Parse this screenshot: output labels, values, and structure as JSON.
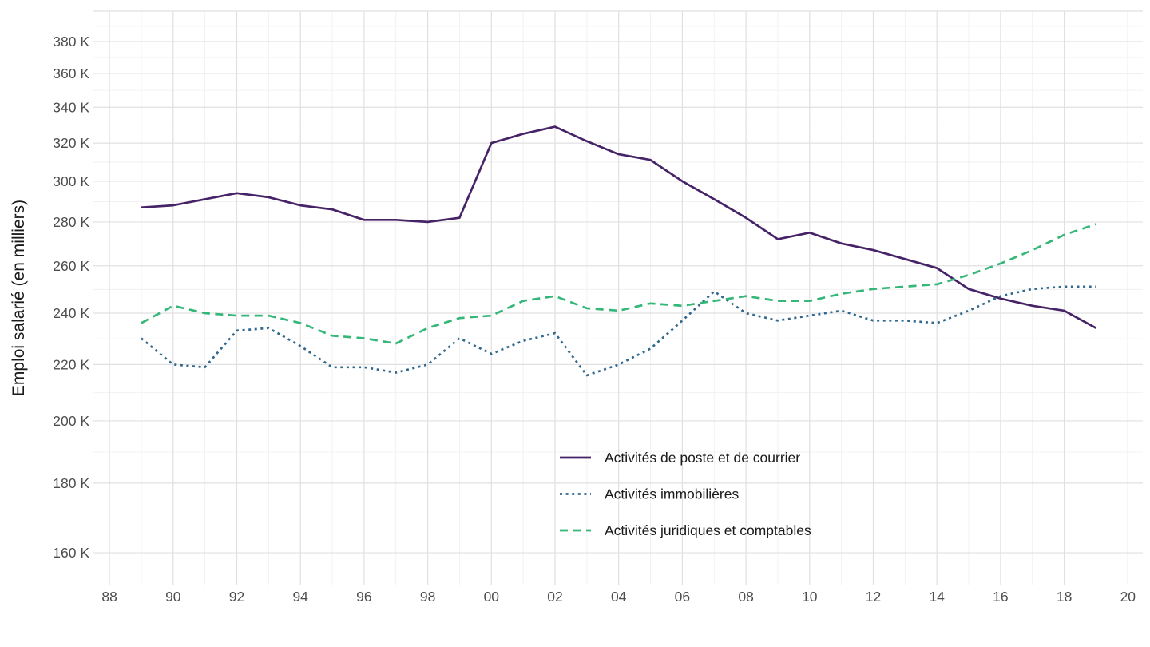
{
  "chart_data": {
    "type": "line",
    "title": "",
    "xlabel": "",
    "ylabel": "Emploi salarié (en milliers)",
    "y_scale": "log",
    "y_unit": "K (milliers)",
    "grid": true,
    "legend_position": "inside-bottom-center",
    "x": [
      1989,
      1990,
      1991,
      1992,
      1993,
      1994,
      1995,
      1996,
      1997,
      1998,
      1999,
      2000,
      2001,
      2002,
      2003,
      2004,
      2005,
      2006,
      2007,
      2008,
      2009,
      2010,
      2011,
      2012,
      2013,
      2014,
      2015,
      2016,
      2017,
      2018,
      2019
    ],
    "series": [
      {
        "name": "Activités de poste et de courrier",
        "color": "#462366",
        "line_style": "solid",
        "values": [
          287,
          288,
          291,
          294,
          292,
          288,
          286,
          281,
          281,
          280,
          282,
          320,
          325,
          329,
          321,
          314,
          311,
          300,
          291,
          282,
          272,
          275,
          270,
          267,
          263,
          259,
          250,
          246,
          243,
          241,
          234
        ]
      },
      {
        "name": "Activités immobilières",
        "color": "#31688E",
        "line_style": "dotted",
        "values": [
          230,
          220,
          219,
          233,
          234,
          227,
          219,
          219,
          217,
          220,
          230,
          224,
          229,
          232,
          216,
          220,
          226,
          237,
          249,
          240,
          237,
          239,
          241,
          237,
          237,
          236,
          241,
          247,
          250,
          251,
          251
        ]
      },
      {
        "name": "Activités juridiques et comptables",
        "color": "#35B779",
        "line_style": "dashed",
        "values": [
          236,
          243,
          240,
          239,
          239,
          236,
          231,
          230,
          228,
          234,
          238,
          239,
          245,
          247,
          242,
          241,
          244,
          243,
          245,
          247,
          245,
          245,
          248,
          250,
          251,
          252,
          256,
          261,
          267,
          274,
          279
        ]
      }
    ],
    "x_ticks": [
      {
        "year": 1988,
        "label": "88"
      },
      {
        "year": 1990,
        "label": "90"
      },
      {
        "year": 1992,
        "label": "92"
      },
      {
        "year": 1994,
        "label": "94"
      },
      {
        "year": 1996,
        "label": "96"
      },
      {
        "year": 1998,
        "label": "98"
      },
      {
        "year": 2000,
        "label": "00"
      },
      {
        "year": 2002,
        "label": "02"
      },
      {
        "year": 2004,
        "label": "04"
      },
      {
        "year": 2006,
        "label": "06"
      },
      {
        "year": 2008,
        "label": "08"
      },
      {
        "year": 2010,
        "label": "10"
      },
      {
        "year": 2012,
        "label": "12"
      },
      {
        "year": 2014,
        "label": "14"
      },
      {
        "year": 2016,
        "label": "16"
      },
      {
        "year": 2018,
        "label": "18"
      },
      {
        "year": 2020,
        "label": "20"
      }
    ],
    "y_ticks": [
      {
        "value": 160,
        "label": "160 K"
      },
      {
        "value": 180,
        "label": "180 K"
      },
      {
        "value": 200,
        "label": "200 K"
      },
      {
        "value": 220,
        "label": "220 K"
      },
      {
        "value": 240,
        "label": "240 K"
      },
      {
        "value": 260,
        "label": "260 K"
      },
      {
        "value": 280,
        "label": "280 K"
      },
      {
        "value": 300,
        "label": "300 K"
      },
      {
        "value": 320,
        "label": "320 K"
      },
      {
        "value": 340,
        "label": "340 K"
      },
      {
        "value": 360,
        "label": "360 K"
      },
      {
        "value": 380,
        "label": "380 K"
      },
      {
        "value": 400,
        "label": ""
      }
    ],
    "style": {
      "grid_major_color": "#e0e0e0",
      "grid_minor_color": "#f0f0f0",
      "tick_text_color": "#4d4d4d",
      "axis_title_color": "#1a1a1a",
      "legend_text_color": "#1a1a1a",
      "background": "#ffffff"
    }
  }
}
